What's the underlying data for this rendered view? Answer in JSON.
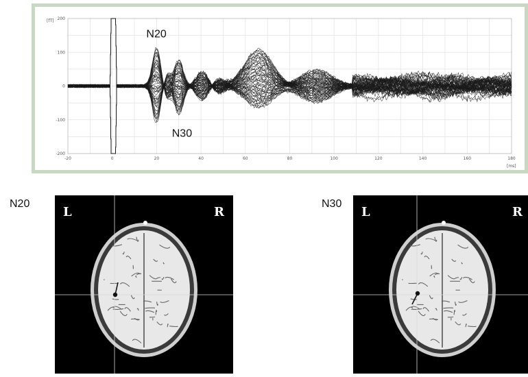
{
  "chart_data": {
    "type": "line",
    "y_unit": "[fT]",
    "x_unit": "[ms]",
    "xlim": [
      -20,
      180
    ],
    "ylim": [
      -200,
      200
    ],
    "x_ticks": [
      -20,
      0,
      20,
      40,
      60,
      80,
      100,
      120,
      140,
      160,
      180
    ],
    "y_ticks": [
      200,
      100,
      0,
      -100,
      -200
    ],
    "x_tick_labels": [
      "-20",
      "0",
      "20",
      "40",
      "60",
      "80",
      "100",
      "120",
      "140",
      "160",
      "180"
    ],
    "y_tick_labels": [
      "200",
      "100",
      "0",
      "-100",
      "-200"
    ],
    "grid": true,
    "trace_color": "#1a1a1a",
    "annotations": [
      {
        "text": "N20",
        "x": 20,
        "y": 120
      },
      {
        "text": "N30",
        "x": 30,
        "y": -110
      }
    ]
  },
  "panels": {
    "n20": {
      "label": "N20",
      "left_marker": "L",
      "right_marker": "R"
    },
    "n30": {
      "label": "N30",
      "left_marker": "L",
      "right_marker": "R"
    }
  }
}
